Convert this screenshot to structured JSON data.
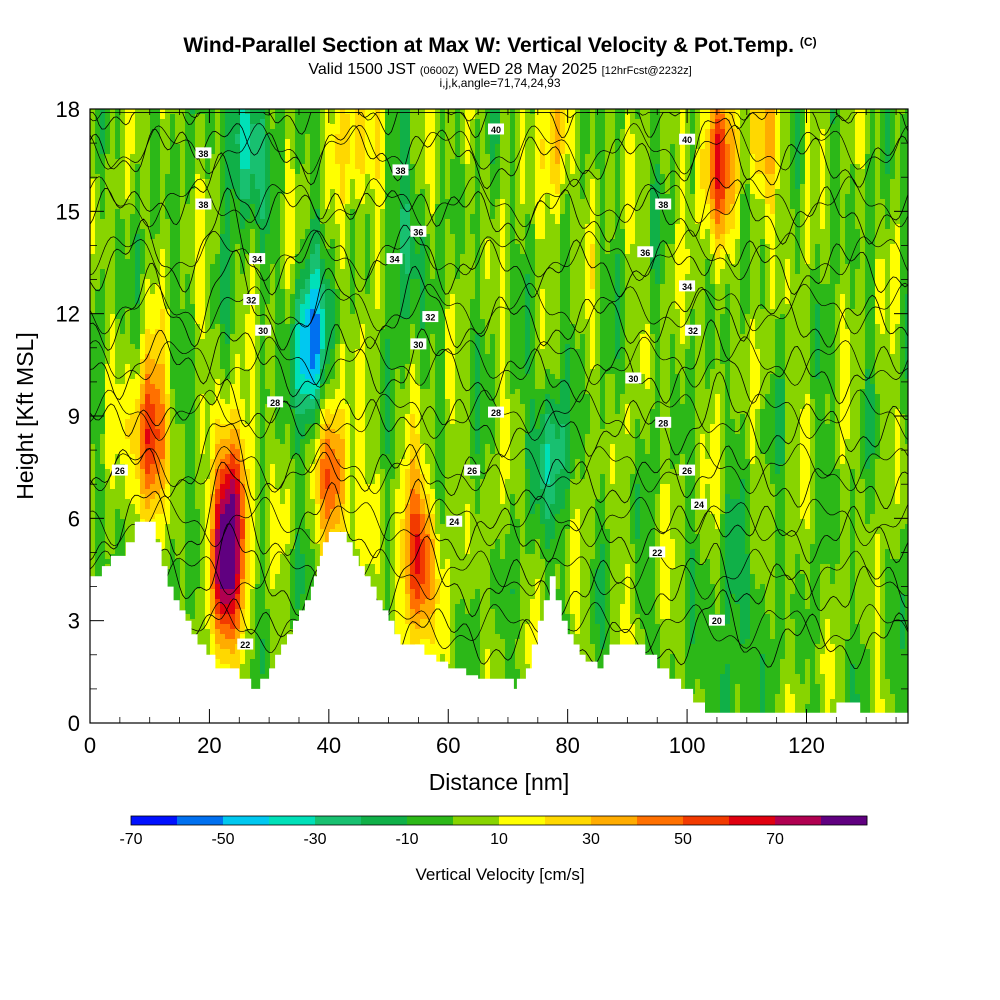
{
  "title": {
    "main": "Wind-Parallel Section at Max W: Vertical Velocity & Pot.Temp.",
    "mark": "(C)",
    "valid_a": "Valid 1500 JST",
    "valid_z": "(0600Z)",
    "valid_b": "WED 28 May 2025",
    "fcst": "[12hrFcst@2232z]",
    "indices": "i,j,k,angle=71,74,24,93"
  },
  "chart_data": {
    "type": "heatmap",
    "xlabel": "Distance [nm]",
    "ylabel": "Height [Kft MSL]",
    "xlim": [
      0,
      137
    ],
    "ylim": [
      0,
      18
    ],
    "x_ticks": [
      "0",
      "20",
      "40",
      "60",
      "80",
      "100",
      "120"
    ],
    "y_ticks": [
      "0",
      "3",
      "6",
      "9",
      "12",
      "15",
      "18"
    ],
    "colorbar": {
      "title": "Vertical Velocity [cm/s]",
      "tick_labels": [
        "-70",
        "-50",
        "-30",
        "-10",
        "10",
        "30",
        "50",
        "70"
      ],
      "levels": [
        -70,
        -60,
        -50,
        -40,
        -30,
        -20,
        -10,
        0,
        10,
        20,
        30,
        40,
        50,
        60,
        70,
        80
      ],
      "colors": [
        "#0010ff",
        "#0070f0",
        "#00c8f0",
        "#00e0b8",
        "#18c070",
        "#10b048",
        "#2cb818",
        "#88d400",
        "#ffff00",
        "#ffd800",
        "#ffac00",
        "#ff7000",
        "#f23a00",
        "#e00010",
        "#b00050",
        "#600080"
      ]
    },
    "vertical_velocity_cores": [
      {
        "x": 10,
        "y": 8.3,
        "w": 60
      },
      {
        "x": 24,
        "y": 6.5,
        "w": 55
      },
      {
        "x": 22,
        "y": 4.5,
        "w": 75
      },
      {
        "x": 41,
        "y": 7.2,
        "w": 50
      },
      {
        "x": 55,
        "y": 4.8,
        "w": 60
      },
      {
        "x": 105,
        "y": 16.5,
        "w": 50
      },
      {
        "x": 45,
        "y": 17,
        "w": 30
      },
      {
        "x": 78,
        "y": 17,
        "w": 25
      },
      {
        "x": 113,
        "y": 17,
        "w": 25
      },
      {
        "x": 37,
        "y": 11,
        "w": -55
      },
      {
        "x": 26,
        "y": 17,
        "w": -40
      },
      {
        "x": 77,
        "y": 8,
        "w": -30
      },
      {
        "x": 53,
        "y": 14,
        "w": -20
      },
      {
        "x": 18,
        "y": 5,
        "w": -20
      },
      {
        "x": 110,
        "y": 3.5,
        "w": -15
      },
      {
        "x": 105,
        "y": 1.5,
        "w": -15
      }
    ],
    "theta_contour_labels": [
      {
        "value": "38",
        "x": 19,
        "y": 16.7
      },
      {
        "value": "38",
        "x": 19,
        "y": 15.2
      },
      {
        "value": "40",
        "x": 68,
        "y": 17.4
      },
      {
        "value": "40",
        "x": 100,
        "y": 17.1
      },
      {
        "value": "38",
        "x": 52,
        "y": 16.2
      },
      {
        "value": "38",
        "x": 96,
        "y": 15.2
      },
      {
        "value": "36",
        "x": 55,
        "y": 14.4
      },
      {
        "value": "36",
        "x": 93,
        "y": 13.8
      },
      {
        "value": "34",
        "x": 28,
        "y": 13.6
      },
      {
        "value": "34",
        "x": 51,
        "y": 13.6
      },
      {
        "value": "34",
        "x": 100,
        "y": 12.8
      },
      {
        "value": "32",
        "x": 27,
        "y": 12.4
      },
      {
        "value": "32",
        "x": 57,
        "y": 11.9
      },
      {
        "value": "32",
        "x": 101,
        "y": 11.5
      },
      {
        "value": "30",
        "x": 29,
        "y": 11.5
      },
      {
        "value": "30",
        "x": 55,
        "y": 11.1
      },
      {
        "value": "30",
        "x": 91,
        "y": 10.1
      },
      {
        "value": "28",
        "x": 31,
        "y": 9.4
      },
      {
        "value": "28",
        "x": 68,
        "y": 9.1
      },
      {
        "value": "28",
        "x": 96,
        "y": 8.8
      },
      {
        "value": "26",
        "x": 5,
        "y": 7.4
      },
      {
        "value": "26",
        "x": 64,
        "y": 7.4
      },
      {
        "value": "26",
        "x": 100,
        "y": 7.4
      },
      {
        "value": "24",
        "x": 61,
        "y": 5.9
      },
      {
        "value": "24",
        "x": 102,
        "y": 6.4
      },
      {
        "value": "22",
        "x": 95,
        "y": 5.0
      },
      {
        "value": "22",
        "x": 26,
        "y": 2.3
      },
      {
        "value": "20",
        "x": 105,
        "y": 3.0
      }
    ],
    "theta_levels": [
      20,
      22,
      24,
      26,
      28,
      30,
      32,
      34,
      36,
      38,
      40
    ],
    "terrain_kft": [
      [
        0,
        4.3
      ],
      [
        2,
        4.3
      ],
      [
        2,
        4.6
      ],
      [
        3.5,
        4.6
      ],
      [
        3.5,
        4.9
      ],
      [
        6,
        4.9
      ],
      [
        6,
        5.3
      ],
      [
        7.5,
        5.3
      ],
      [
        7.5,
        5.9
      ],
      [
        11,
        5.9
      ],
      [
        11,
        5.3
      ],
      [
        12,
        5.3
      ],
      [
        12,
        4.6
      ],
      [
        13,
        4.6
      ],
      [
        13,
        4.0
      ],
      [
        14,
        4.0
      ],
      [
        14,
        3.6
      ],
      [
        15,
        3.6
      ],
      [
        15,
        3.3
      ],
      [
        16,
        3.3
      ],
      [
        16,
        3.0
      ],
      [
        17,
        3.0
      ],
      [
        17,
        2.6
      ],
      [
        18,
        2.6
      ],
      [
        18,
        2.3
      ],
      [
        19.5,
        2.3
      ],
      [
        19.5,
        2.0
      ],
      [
        21,
        2.0
      ],
      [
        21,
        1.6
      ],
      [
        25,
        1.6
      ],
      [
        25,
        1.3
      ],
      [
        27,
        1.3
      ],
      [
        27,
        1.0
      ],
      [
        28.5,
        1.0
      ],
      [
        28.5,
        1.3
      ],
      [
        30,
        1.3
      ],
      [
        30,
        1.6
      ],
      [
        31,
        1.6
      ],
      [
        31,
        2.0
      ],
      [
        32,
        2.0
      ],
      [
        32,
        2.3
      ],
      [
        33,
        2.3
      ],
      [
        33,
        2.6
      ],
      [
        34,
        2.6
      ],
      [
        34,
        3.0
      ],
      [
        35,
        3.0
      ],
      [
        35,
        3.3
      ],
      [
        36,
        3.3
      ],
      [
        36,
        3.6
      ],
      [
        37,
        3.6
      ],
      [
        37,
        4.0
      ],
      [
        37.5,
        4.0
      ],
      [
        37.5,
        4.3
      ],
      [
        38,
        4.3
      ],
      [
        38,
        4.6
      ],
      [
        38.5,
        4.6
      ],
      [
        38.5,
        4.9
      ],
      [
        39,
        4.9
      ],
      [
        39,
        5.3
      ],
      [
        40,
        5.3
      ],
      [
        40,
        5.6
      ],
      [
        43,
        5.6
      ],
      [
        43,
        5.3
      ],
      [
        44,
        5.3
      ],
      [
        44,
        4.9
      ],
      [
        45,
        4.9
      ],
      [
        45,
        4.6
      ],
      [
        46,
        4.6
      ],
      [
        46,
        4.3
      ],
      [
        47,
        4.3
      ],
      [
        47,
        4.0
      ],
      [
        48,
        4.0
      ],
      [
        48,
        3.6
      ],
      [
        49,
        3.6
      ],
      [
        49,
        3.3
      ],
      [
        50,
        3.3
      ],
      [
        50,
        3.0
      ],
      [
        51,
        3.0
      ],
      [
        51,
        2.6
      ],
      [
        52,
        2.6
      ],
      [
        52,
        2.3
      ],
      [
        56,
        2.3
      ],
      [
        56,
        2.0
      ],
      [
        58,
        2.0
      ],
      [
        58,
        1.8
      ],
      [
        60,
        1.8
      ],
      [
        60,
        1.6
      ],
      [
        63,
        1.6
      ],
      [
        63,
        1.4
      ],
      [
        65,
        1.4
      ],
      [
        65,
        1.3
      ],
      [
        71,
        1.3
      ],
      [
        71,
        1.0
      ],
      [
        71.5,
        1.0
      ],
      [
        71.5,
        1.3
      ],
      [
        73,
        1.3
      ],
      [
        73,
        1.6
      ],
      [
        74,
        1.6
      ],
      [
        74,
        2.3
      ],
      [
        75,
        2.3
      ],
      [
        75,
        3.0
      ],
      [
        76,
        3.0
      ],
      [
        76,
        3.6
      ],
      [
        77,
        3.6
      ],
      [
        77,
        4.3
      ],
      [
        78,
        4.3
      ],
      [
        78,
        3.6
      ],
      [
        79,
        3.6
      ],
      [
        79,
        3.0
      ],
      [
        80,
        3.0
      ],
      [
        80,
        2.6
      ],
      [
        81,
        2.6
      ],
      [
        81,
        2.3
      ],
      [
        82,
        2.3
      ],
      [
        82,
        2.0
      ],
      [
        83,
        2.0
      ],
      [
        83,
        1.8
      ],
      [
        85,
        1.8
      ],
      [
        85,
        1.6
      ],
      [
        86,
        1.6
      ],
      [
        86,
        2.0
      ],
      [
        87,
        2.0
      ],
      [
        87,
        2.3
      ],
      [
        93,
        2.3
      ],
      [
        93,
        2.0
      ],
      [
        95,
        2.0
      ],
      [
        95,
        1.6
      ],
      [
        97,
        1.6
      ],
      [
        97,
        1.3
      ],
      [
        99,
        1.3
      ],
      [
        99,
        1.0
      ],
      [
        101,
        1.0
      ],
      [
        101,
        0.6
      ],
      [
        103,
        0.6
      ],
      [
        103,
        0.3
      ],
      [
        125,
        0.3
      ],
      [
        125,
        0.6
      ],
      [
        129,
        0.6
      ],
      [
        129,
        0.3
      ],
      [
        137,
        0.3
      ]
    ]
  }
}
